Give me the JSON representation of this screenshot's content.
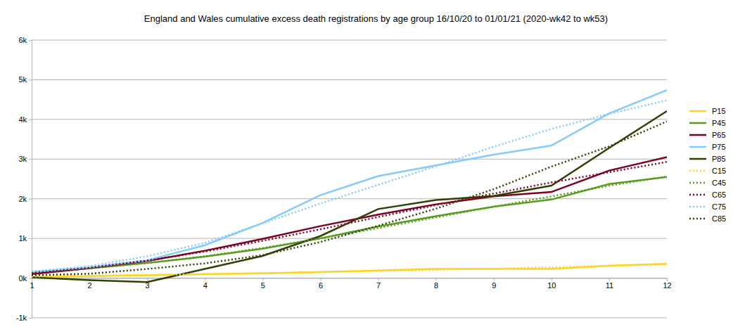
{
  "chart_data": {
    "type": "line",
    "title": "England and Wales cumulative excess death registrations by age group 16/10/20 to 01/01/21 (2020-wk42 to wk53)",
    "x": [
      1,
      2,
      3,
      4,
      5,
      6,
      7,
      8,
      9,
      10,
      11,
      12
    ],
    "xlim": [
      1,
      12
    ],
    "xticks": [
      1,
      2,
      3,
      4,
      5,
      6,
      7,
      8,
      9,
      10,
      11,
      12
    ],
    "ylim": [
      -1000,
      6000
    ],
    "yticks": [
      {
        "value": -1000,
        "label": "-1k"
      },
      {
        "value": 0,
        "label": "0k"
      },
      {
        "value": 1000,
        "label": "1k"
      },
      {
        "value": 2000,
        "label": "2k"
      },
      {
        "value": 3000,
        "label": "3k"
      },
      {
        "value": 4000,
        "label": "4k"
      },
      {
        "value": 5000,
        "label": "5k"
      },
      {
        "value": 6000,
        "label": "6k"
      }
    ],
    "grid": true,
    "legend": "right",
    "series": [
      {
        "name": "P15",
        "color": "#ffd320",
        "line_style": "solid",
        "values": [
          30,
          50,
          70,
          100,
          120,
          150,
          190,
          230,
          230,
          230,
          310,
          360
        ]
      },
      {
        "name": "P45",
        "color": "#579d1c",
        "line_style": "solid",
        "values": [
          120,
          250,
          380,
          540,
          740,
          1000,
          1300,
          1560,
          1800,
          1980,
          2370,
          2550
        ]
      },
      {
        "name": "P65",
        "color": "#7e0021",
        "line_style": "solid",
        "values": [
          100,
          250,
          430,
          690,
          990,
          1310,
          1600,
          1860,
          2060,
          2170,
          2710,
          3050
        ]
      },
      {
        "name": "P75",
        "color": "#83caff",
        "line_style": "solid",
        "values": [
          150,
          270,
          450,
          830,
          1390,
          2090,
          2570,
          2840,
          3110,
          3340,
          4150,
          4740
        ]
      },
      {
        "name": "P85",
        "color": "#314004",
        "line_style": "solid",
        "values": [
          20,
          -50,
          -100,
          230,
          560,
          1060,
          1740,
          1970,
          2070,
          2330,
          3280,
          4210
        ]
      },
      {
        "name": "C15",
        "color": "#ffd320",
        "line_style": "dotted",
        "values": [
          40,
          60,
          80,
          100,
          120,
          150,
          180,
          210,
          240,
          270,
          310,
          350
        ]
      },
      {
        "name": "C45",
        "color": "#579d1c",
        "line_style": "dotted",
        "values": [
          130,
          240,
          380,
          550,
          760,
          1000,
          1260,
          1530,
          1800,
          2060,
          2330,
          2560
        ]
      },
      {
        "name": "C65",
        "color": "#7e0021",
        "line_style": "dotted",
        "values": [
          130,
          260,
          440,
          670,
          940,
          1230,
          1540,
          1840,
          2130,
          2410,
          2670,
          2930
        ]
      },
      {
        "name": "C75",
        "color": "#83caff",
        "line_style": "dotted",
        "values": [
          170,
          300,
          550,
          890,
          1380,
          1880,
          2350,
          2820,
          3310,
          3760,
          4140,
          4480
        ]
      },
      {
        "name": "C85",
        "color": "#314004",
        "line_style": "dotted",
        "values": [
          70,
          110,
          230,
          370,
          580,
          910,
          1320,
          1750,
          2240,
          2810,
          3320,
          3950
        ]
      }
    ]
  }
}
